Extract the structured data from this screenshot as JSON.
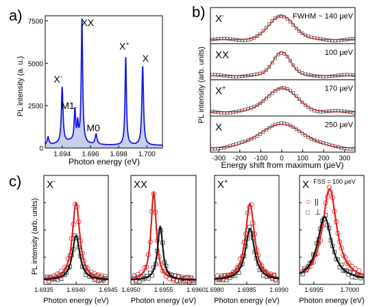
{
  "panels": {
    "a": "a)",
    "b": "b)",
    "c": "c)"
  },
  "chart_data": [
    {
      "id": "a",
      "type": "area",
      "xlabel": "Photon energy (eV)",
      "ylabel": "PL intensity (a. u.)",
      "xlim": [
        1.6928,
        1.7011
      ],
      "ylim": [
        0,
        7800
      ],
      "xticks": [
        1.694,
        1.696,
        1.698,
        1.7
      ],
      "xtick_labels": [
        "1.694",
        "1.696",
        "1.698",
        "1.700"
      ],
      "yticks": [
        0,
        2500,
        5000,
        7500
      ],
      "ytick_labels": [
        "0",
        "2500",
        "5000",
        "7500"
      ],
      "baseline": 150,
      "peaks": [
        {
          "label": "X⁻",
          "x": 1.694,
          "y": 3300,
          "w": 7e-05
        },
        {
          "label": "M1",
          "x": 1.6949,
          "y": 1850,
          "w": 6e-05
        },
        {
          "label": "",
          "x": 1.6951,
          "y": 1000,
          "w": 5e-05
        },
        {
          "label": "XX",
          "x": 1.6954,
          "y": 7300,
          "w": 6e-05
        },
        {
          "label": "M0",
          "x": 1.6964,
          "y": 600,
          "w": 8e-05
        },
        {
          "label": "X⁺",
          "x": 1.6985,
          "y": 5200,
          "w": 6e-05
        },
        {
          "label": "X",
          "x": 1.6997,
          "y": 4650,
          "w": 7e-05
        },
        {
          "label": "",
          "x": 1.693,
          "y": 450,
          "w": 7e-05
        }
      ],
      "peak_labels": [
        {
          "text": "X⁻",
          "x": 1.6937,
          "y": 3850
        },
        {
          "text": "M1",
          "x": 1.6944,
          "y": 2300
        },
        {
          "text": "XX",
          "x": 1.6958,
          "y": 7200
        },
        {
          "text": "M0",
          "x": 1.6962,
          "y": 1000
        },
        {
          "text": "X⁺",
          "x": 1.6984,
          "y": 5800
        },
        {
          "text": "X",
          "x": 1.6999,
          "y": 5100
        }
      ],
      "color": "#1a1ae0",
      "fill": "#c9cdef"
    },
    {
      "id": "b",
      "type": "line",
      "xlabel": "Energy shift from maximum (μeV)",
      "ylabel": "PL intensity (arb. units)",
      "xlim": [
        -340,
        350
      ],
      "xticks": [
        -300,
        -200,
        -100,
        0,
        100,
        200,
        300
      ],
      "xtick_labels": [
        "-300",
        "-200",
        "-100",
        "0",
        "100",
        "200",
        "300"
      ],
      "series": [
        {
          "name": "X⁻",
          "fwhm_label": "FWHM ~ 140 μeV",
          "fwhm": 140
        },
        {
          "name": "XX",
          "fwhm_label": "100 μeV",
          "fwhm": 100
        },
        {
          "name": "X⁺",
          "fwhm_label": "170 μeV",
          "fwhm": 170
        },
        {
          "name": "X",
          "fwhm_label": "250 μeV",
          "fwhm": 250
        }
      ],
      "fit_color": "#e02020",
      "marker_color": "#333333"
    },
    {
      "id": "c",
      "type": "line",
      "xlabel": "Photon energy (eV)",
      "ylabel": "PL intensity (arb. units)",
      "legend": [
        {
          "symbol": "○",
          "label": "||",
          "color": "#e02020"
        },
        {
          "symbol": "□",
          "label": "⊥",
          "color": "#333333"
        }
      ],
      "annotation": "FSS = 100 μeV",
      "subpanels": [
        {
          "name": "X⁻",
          "xlim": [
            1.6935,
            1.6945
          ],
          "xticks": [
            1.6935,
            1.694,
            1.6945
          ],
          "xtick_labels": [
            "1.6935",
            "1.6940",
            "1.6945"
          ],
          "par": {
            "x0": 1.694,
            "fwhm": 0.00014,
            "amp": 0.78
          },
          "perp": {
            "x0": 1.694,
            "fwhm": 0.00014,
            "amp": 0.45
          }
        },
        {
          "name": "XX",
          "xlim": [
            1.695,
            1.696
          ],
          "xticks": [
            1.695,
            1.6955,
            1.696
          ],
          "xtick_labels": [
            "1.6950",
            "1.6955",
            "1.6960"
          ],
          "par": {
            "x0": 1.69535,
            "fwhm": 0.0001,
            "amp": 0.88
          },
          "perp": {
            "x0": 1.69545,
            "fwhm": 0.0001,
            "amp": 0.54
          }
        },
        {
          "name": "X⁺",
          "xlim": [
            1.698,
            1.699
          ],
          "xticks": [
            1.698,
            1.6985,
            1.699
          ],
          "xtick_labels": [
            "1.6980",
            "1.6985",
            "1.6990"
          ],
          "par": {
            "x0": 1.69855,
            "fwhm": 0.00017,
            "amp": 0.77
          },
          "perp": {
            "x0": 1.69855,
            "fwhm": 0.00017,
            "amp": 0.52
          }
        },
        {
          "name": "X",
          "xlim": [
            1.6993,
            1.7002
          ],
          "xticks": [
            1.6995,
            1.7
          ],
          "xtick_labels": [
            "1.6995",
            "1.7000"
          ],
          "par": {
            "x0": 1.69972,
            "fwhm": 0.00024,
            "amp": 0.92
          },
          "perp": {
            "x0": 1.69965,
            "fwhm": 0.00024,
            "amp": 0.64
          }
        }
      ]
    }
  ]
}
